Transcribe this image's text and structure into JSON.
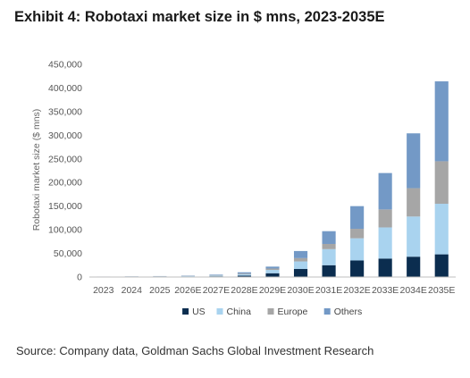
{
  "title": "Exhibit 4: Robotaxi market size in $ mns, 2023-2035E",
  "source": "Source: Company data, Goldman Sachs Global Investment Research",
  "chart_data": {
    "type": "bar",
    "stacked": true,
    "title": "Exhibit 4: Robotaxi market size in $ mns, 2023-2035E",
    "xlabel": "",
    "ylabel": "Robotaxi market size ($ mns)",
    "ylim": [
      0,
      450000
    ],
    "yticks": [
      0,
      50000,
      100000,
      150000,
      200000,
      250000,
      300000,
      350000,
      400000,
      450000
    ],
    "ytick_labels": [
      "0",
      "50,000",
      "100,000",
      "150,000",
      "200,000",
      "250,000",
      "300,000",
      "350,000",
      "400,000",
      "450,000"
    ],
    "grid": false,
    "legend_position": "bottom",
    "categories": [
      "2023",
      "2024",
      "2025",
      "2026E",
      "2027E",
      "2028E",
      "2029E",
      "2030E",
      "2031E",
      "2032E",
      "2033E",
      "2034E",
      "2035E"
    ],
    "series": [
      {
        "name": "US",
        "color": "#0b2d4f",
        "values": [
          300,
          400,
          600,
          900,
          1500,
          3000,
          8000,
          17000,
          25000,
          35000,
          39000,
          43000,
          48000
        ]
      },
      {
        "name": "China",
        "color": "#a9d3ef",
        "values": [
          300,
          400,
          600,
          900,
          1500,
          3000,
          7000,
          16000,
          34000,
          47000,
          66000,
          85000,
          107000
        ]
      },
      {
        "name": "Europe",
        "color": "#a6a6a6",
        "values": [
          200,
          300,
          400,
          500,
          800,
          1500,
          3000,
          7000,
          11000,
          20000,
          38000,
          60000,
          90000
        ]
      },
      {
        "name": "Others",
        "color": "#7399c6",
        "values": [
          200,
          300,
          400,
          700,
          1200,
          2500,
          4000,
          15000,
          27000,
          48000,
          77000,
          116000,
          169000
        ]
      }
    ]
  }
}
